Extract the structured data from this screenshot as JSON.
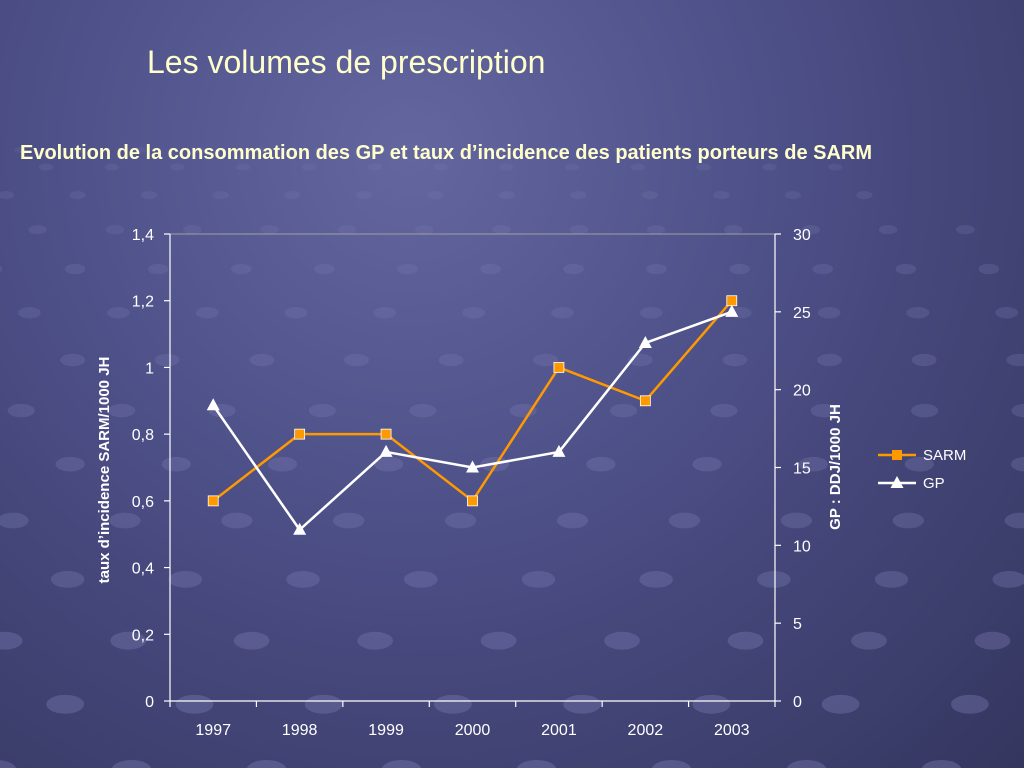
{
  "slide": {
    "title": "Les volumes de prescription"
  },
  "colors": {
    "background": "#4c4e86",
    "title_text": "#ffffcc",
    "sarm_series": "#ff9900",
    "gp_series": "#ffffff"
  },
  "chart_data": {
    "type": "line",
    "title": "Evolution de la consommation des GP et taux d’incidence des patients porteurs de SARM",
    "categories": [
      "1997",
      "1998",
      "1999",
      "2000",
      "2001",
      "2002",
      "2003"
    ],
    "y_left": {
      "label": "taux d’incidence SARM/1000 JH",
      "ylim": [
        0,
        1.4
      ],
      "ticks": [
        "0",
        "0,2",
        "0,4",
        "0,6",
        "0,8",
        "1",
        "1,2",
        "1,4"
      ]
    },
    "y_right": {
      "label": "GP : DDJ/1000 JH",
      "ylim": [
        0,
        30
      ],
      "ticks": [
        "0",
        "5",
        "10",
        "15",
        "20",
        "25",
        "30"
      ]
    },
    "series": [
      {
        "name": "SARM",
        "axis": "left",
        "marker": "square",
        "color": "#ff9900",
        "values": [
          0.6,
          0.8,
          0.8,
          0.6,
          1.0,
          0.9,
          1.2
        ]
      },
      {
        "name": "GP",
        "axis": "right",
        "marker": "triangle",
        "color": "#ffffff",
        "values": [
          19,
          11,
          16,
          15,
          16,
          23,
          25
        ]
      }
    ],
    "legend_position": "right",
    "grid": false
  }
}
